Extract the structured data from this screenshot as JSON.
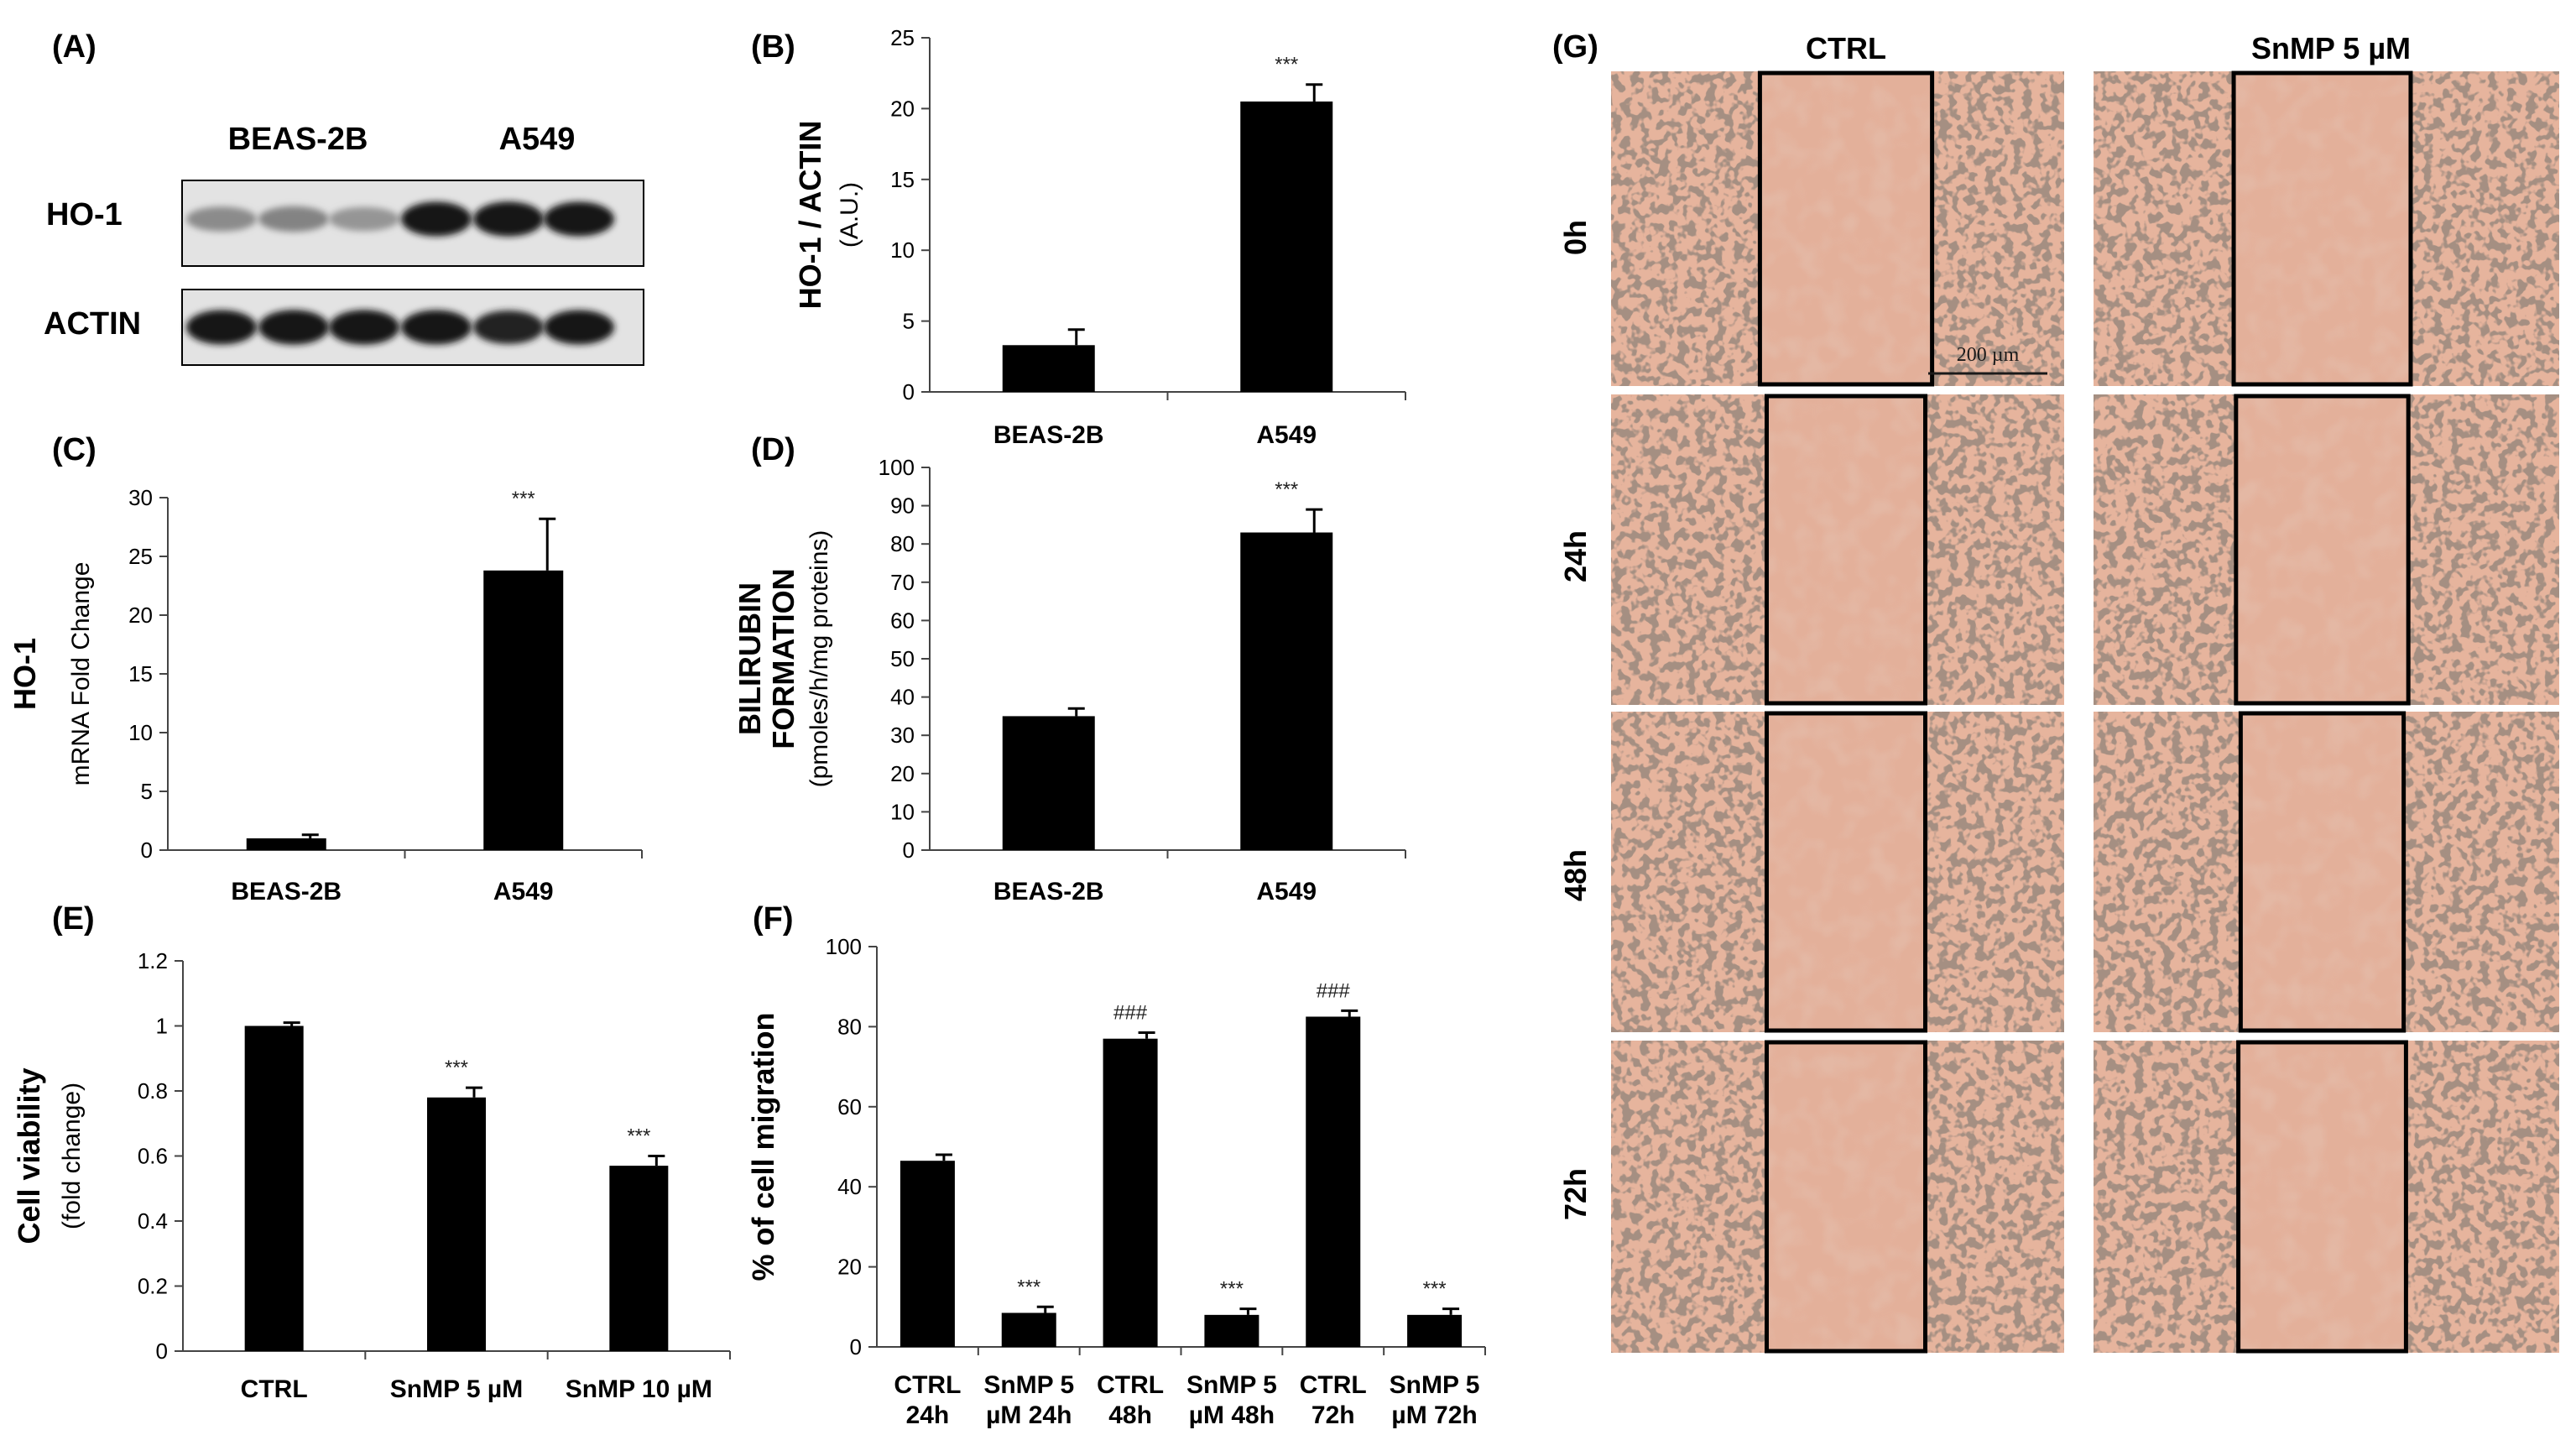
{
  "blot": {
    "panel_label": "(A)",
    "groups": [
      "BEAS-2B",
      "A549"
    ],
    "rows": [
      {
        "label": "HO-1",
        "intensities": [
          0.38,
          0.42,
          0.33,
          0.95,
          0.97,
          0.95
        ]
      },
      {
        "label": "ACTIN",
        "intensities": [
          0.95,
          0.97,
          0.97,
          0.95,
          0.9,
          0.95
        ]
      }
    ]
  },
  "chart_data": [
    {
      "id": "B",
      "panel_label": "(B)",
      "type": "bar",
      "categories": [
        "BEAS-2B",
        "A549"
      ],
      "values": [
        3.3,
        20.5
      ],
      "errors": [
        1.1,
        1.2
      ],
      "annotations": [
        "",
        "***"
      ],
      "ylabel_lines": [
        "HO-1 / ACTIN",
        "(A.U.)"
      ],
      "ylim": [
        0,
        25
      ],
      "yticks": [
        "0",
        "5",
        "10",
        "15",
        "20",
        "25"
      ]
    },
    {
      "id": "C",
      "panel_label": "(C)",
      "type": "bar",
      "categories": [
        "BEAS-2B",
        "A549"
      ],
      "values": [
        1.0,
        23.8
      ],
      "errors": [
        0.3,
        4.4
      ],
      "annotations": [
        "",
        "***"
      ],
      "ylabel_lines": [
        "HO-1",
        "mRNA Fold Change"
      ],
      "ylim": [
        0,
        30
      ],
      "yticks": [
        "0",
        "5",
        "10",
        "15",
        "20",
        "25",
        "30"
      ]
    },
    {
      "id": "D",
      "panel_label": "(D)",
      "type": "bar",
      "categories": [
        "BEAS-2B",
        "A549"
      ],
      "values": [
        35,
        83
      ],
      "errors": [
        2,
        6
      ],
      "annotations": [
        "",
        "***"
      ],
      "ylabel_lines": [
        "BILIRUBIN",
        "FORMATION",
        "(pmoles/h/mg proteins)"
      ],
      "ylim": [
        0,
        100
      ],
      "yticks": [
        "0",
        "10",
        "20",
        "30",
        "40",
        "50",
        "60",
        "70",
        "80",
        "90",
        "100"
      ]
    },
    {
      "id": "E",
      "panel_label": "(E)",
      "type": "bar",
      "categories": [
        "CTRL",
        "SnMP 5 µM",
        "SnMP 10 µM"
      ],
      "values": [
        1.0,
        0.78,
        0.57
      ],
      "errors": [
        0.01,
        0.03,
        0.03
      ],
      "annotations": [
        "",
        "***",
        "***"
      ],
      "ylabel_lines": [
        "Cell viability",
        "(fold change)"
      ],
      "ylim": [
        0,
        1.2
      ],
      "yticks": [
        "0",
        "0.2",
        "0.4",
        "0.6",
        "0.8",
        "1",
        "1.2"
      ]
    },
    {
      "id": "F",
      "panel_label": "(F)",
      "type": "bar",
      "categories": [
        [
          "CTRL",
          "24h"
        ],
        [
          "SnMP 5",
          "µM 24h"
        ],
        [
          "CTRL",
          "48h"
        ],
        [
          "SnMP 5",
          "µM 48h"
        ],
        [
          "CTRL",
          "72h"
        ],
        [
          "SnMP 5",
          "µM 72h"
        ]
      ],
      "values": [
        46.5,
        8.5,
        77,
        8,
        82.5,
        8
      ],
      "errors": [
        1.5,
        1.5,
        1.5,
        1.5,
        1.5,
        1.5
      ],
      "annotations": [
        "",
        "***",
        "###",
        "***",
        "###",
        "***"
      ],
      "ylabel_lines": [
        "% of cell migration"
      ],
      "ylim": [
        0,
        100
      ],
      "yticks": [
        "0",
        "20",
        "40",
        "60",
        "80",
        "100"
      ]
    }
  ],
  "micro": {
    "panel_label": "(G)",
    "columns": [
      "CTRL",
      "SnMP 5 µM"
    ],
    "rows": [
      "0h",
      "24h",
      "48h",
      "72h"
    ],
    "scale_bar": "200 µm",
    "gap_fraction": [
      [
        0.38,
        0.38
      ],
      [
        0.35,
        0.37
      ],
      [
        0.35,
        0.35
      ],
      [
        0.35,
        0.36
      ]
    ]
  }
}
